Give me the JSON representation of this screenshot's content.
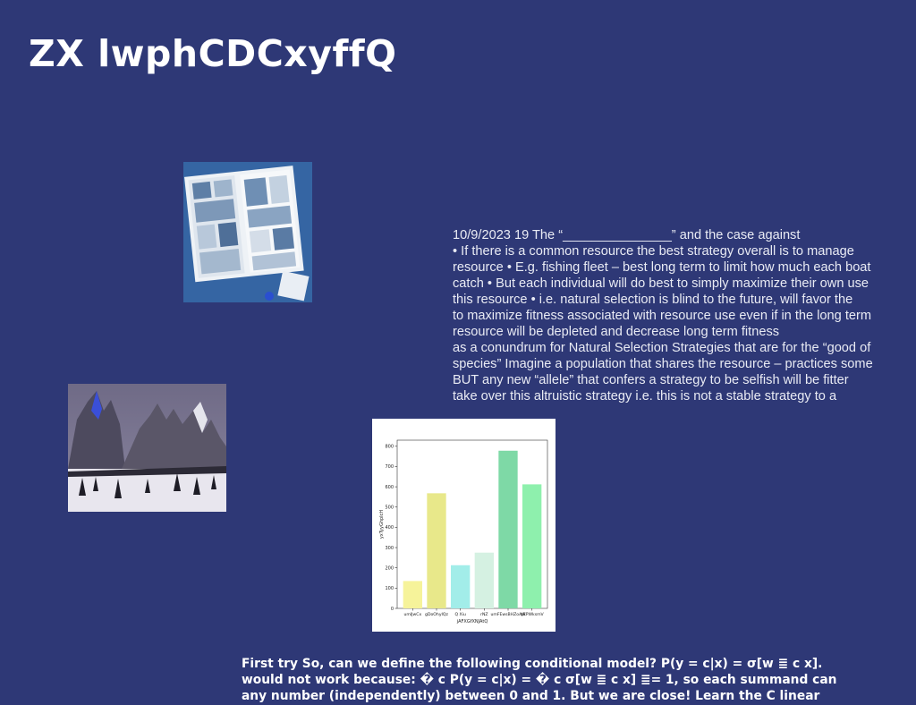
{
  "title": "ZX lwphCDCxyffQ",
  "body_lines": [
    "10/9/2023 19 The “_______________” and the case against",
    "• If there is a common resource the best strategy overall is to manage",
    "resource • E.g. fishing fleet – best long term to limit how much each boat",
    "catch • But each individual will do best to simply maximize their own use",
    "this resource • i.e. natural selection is blind to the future, will favor the",
    "to maximize fitness associated with resource use even if in the long term",
    "resource will be depleted and decrease long term fitness",
    "as a conundrum for Natural Selection Strategies that are for the “good of",
    "species” Imagine a population that shares the resource – practices some",
    "BUT any new “allele” that confers a strategy to be selfish will be fitter",
    "take over this altruistic strategy i.e. this is not a stable strategy to a"
  ],
  "footer_lines": [
    "First try So, can we define the following conditional model? P(y = c|x) = σ[w ≣ c x].",
    "would not work because: � c P(y = c|x) = � c σ[w ≣ c x] ≣= 1, so each summand can",
    "any number (independently) between 0 and 1. But we are close! Learn the C linear"
  ],
  "images": {
    "comic_book": "comic-book-photo",
    "mountains": "snowy-mountain-photo"
  },
  "chart_data": {
    "type": "bar",
    "categories": [
      "umIJwCx",
      "gDoOhyIQz",
      "Q Xiu",
      "rNZ",
      "umFEwsBHZoAW",
      "qRPWksmV"
    ],
    "values": [
      135,
      568,
      213,
      275,
      778,
      612
    ],
    "colors": [
      "#f6f39a",
      "#e8e88a",
      "#a2ede9",
      "#d5f1e2",
      "#7ed9a6",
      "#8ef0ad"
    ],
    "xlabel": "jAFXGfXNJAtQ",
    "ylabel": "yxTyyGhpIcH",
    "ylim": [
      0,
      830
    ],
    "yticks": [
      0,
      100,
      200,
      300,
      400,
      500,
      600,
      700,
      800
    ]
  }
}
